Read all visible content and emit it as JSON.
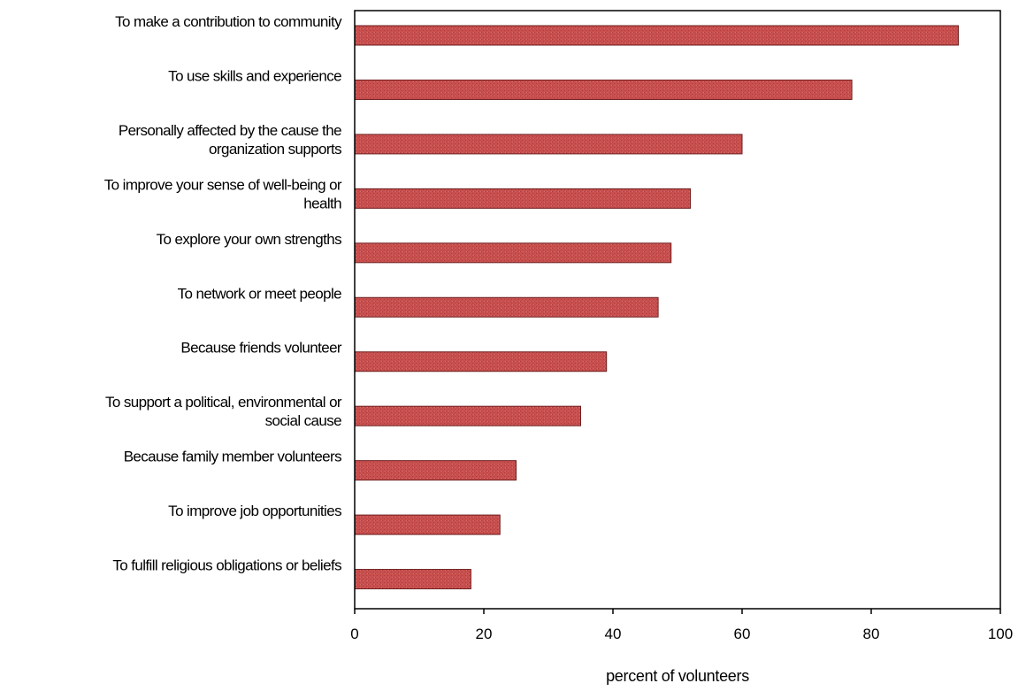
{
  "chart_data": {
    "type": "bar",
    "orientation": "horizontal",
    "categories": [
      [
        "To make a contribution to community"
      ],
      [
        "To use skills and experience"
      ],
      [
        "Personally affected by the cause the",
        "organization supports"
      ],
      [
        "To improve your sense of well-being or",
        "health"
      ],
      [
        "To explore your own strengths"
      ],
      [
        "To network or meet people"
      ],
      [
        "Because friends volunteer"
      ],
      [
        "To support a political, environmental or",
        "social cause"
      ],
      [
        "Because family member volunteers"
      ],
      [
        "To improve job opportunities"
      ],
      [
        "To fulfill religious obligations or beliefs"
      ]
    ],
    "values": [
      93.5,
      77,
      60,
      52,
      49,
      47,
      39,
      35,
      25,
      22.5,
      18
    ],
    "xlabel": "percent of volunteers",
    "ylabel": "",
    "xlim": [
      0,
      100
    ],
    "xticks": [
      "0",
      "20",
      "40",
      "60",
      "80",
      "100"
    ],
    "grid": false,
    "bar_color": "#c8504f",
    "bar_edge_color": "#6e1e1e"
  }
}
